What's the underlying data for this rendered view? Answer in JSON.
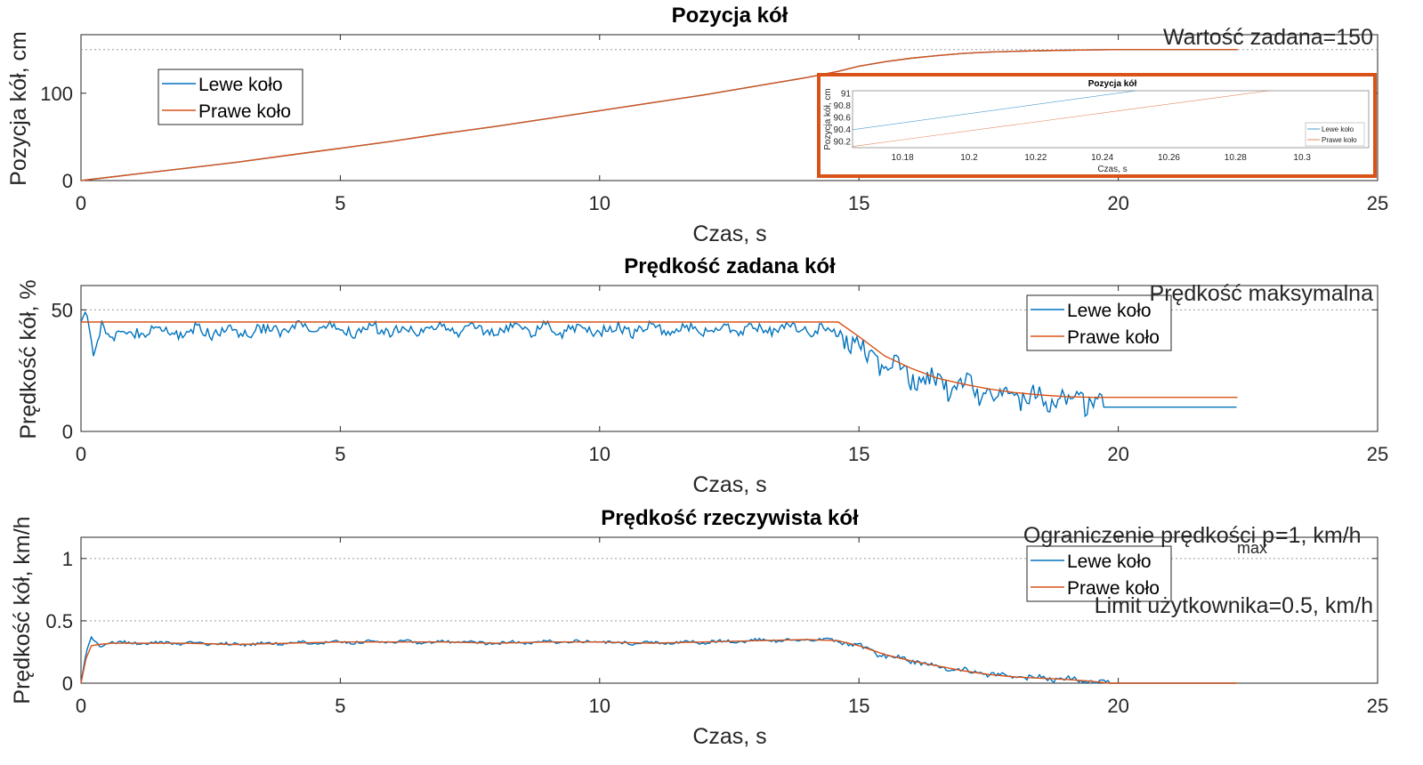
{
  "colors": {
    "left_wheel": "#0072BD",
    "right_wheel": "#D95319",
    "axes": "#262626",
    "reference_line": "#9a9a9a",
    "inset_frame": "#D95319"
  },
  "chart_data": [
    {
      "type": "line",
      "title": "Pozycja kół",
      "xlabel": "Czas, s",
      "ylabel": "Pozycja kół, cm",
      "xlim": [
        0,
        25
      ],
      "ylim": [
        0,
        167
      ],
      "xticks": [
        0,
        5,
        10,
        15,
        20,
        25
      ],
      "yticks": [
        0,
        100
      ],
      "grid": false,
      "legend": {
        "placement": "top-left",
        "entries": [
          "Lewe koło",
          "Prawe koło"
        ]
      },
      "annotations": [
        "Wartość zadana=150"
      ],
      "reference_lines": [
        {
          "y": 150,
          "style": "dotted"
        }
      ],
      "series": [
        {
          "name": "Lewe koło",
          "color": "#0072BD",
          "x": [
            0,
            1,
            2,
            3,
            4,
            5,
            6,
            7,
            8,
            9,
            10,
            11,
            12,
            13,
            14,
            14.6,
            15,
            15.5,
            16,
            16.5,
            17,
            17.5,
            18,
            18.5,
            19,
            19.5,
            20,
            22.3
          ],
          "y": [
            0,
            7,
            14,
            21,
            29,
            37,
            45,
            54,
            62,
            71,
            80,
            89,
            98,
            108,
            118,
            125,
            131,
            136,
            140,
            143,
            145.5,
            147,
            148,
            148.7,
            149.2,
            149.6,
            150,
            150
          ]
        },
        {
          "name": "Prawe koło",
          "color": "#D95319",
          "x": [
            0,
            1,
            2,
            3,
            4,
            5,
            6,
            7,
            8,
            9,
            10,
            11,
            12,
            13,
            14,
            14.6,
            15,
            15.5,
            16,
            16.5,
            17,
            17.5,
            18,
            18.5,
            19,
            19.5,
            20,
            22.3
          ],
          "y": [
            0,
            7,
            14,
            21,
            29,
            37,
            45,
            54,
            62,
            71,
            80,
            89,
            98,
            108,
            118,
            125,
            131,
            136,
            140,
            143,
            145.5,
            147,
            148,
            148.7,
            149.2,
            149.6,
            150,
            150
          ]
        }
      ],
      "inset": {
        "title": "Pozycja kół",
        "xlabel": "Czas, s",
        "ylabel": "Pozycja kół, cm",
        "xlim": [
          10.165,
          10.32
        ],
        "ylim": [
          90.1,
          91.05
        ],
        "xticks": [
          10.18,
          10.2,
          10.22,
          10.24,
          10.26,
          10.28,
          10.3
        ],
        "yticks": [
          90.2,
          90.4,
          90.6,
          90.8,
          91
        ],
        "legend": {
          "placement": "bottom-right",
          "entries": [
            "Lewe koło",
            "Prawe koło"
          ]
        },
        "series": [
          {
            "name": "Lewe koło",
            "x": [
              10.165,
              10.25
            ],
            "y": [
              90.4,
              91.05
            ]
          },
          {
            "name": "Prawe koło",
            "x": [
              10.165,
              10.29
            ],
            "y": [
              90.12,
              91.05
            ]
          }
        ]
      }
    },
    {
      "type": "line",
      "title": "Prędkość zadana kół",
      "xlabel": "Czas, s",
      "ylabel": "Prędkość kół, %",
      "xlim": [
        0,
        25
      ],
      "ylim": [
        0,
        60
      ],
      "xticks": [
        0,
        5,
        10,
        15,
        20,
        25
      ],
      "yticks": [
        0,
        50
      ],
      "grid": false,
      "legend": {
        "placement": "top-right",
        "entries": [
          "Lewe koło",
          "Prawe koło"
        ]
      },
      "annotations": [
        "Prędkość maksymalna"
      ],
      "reference_lines": [
        {
          "y": 50,
          "style": "dotted"
        }
      ],
      "series": [
        {
          "name": "Lewe koło",
          "color": "#0072BD",
          "noisy": true,
          "x": [
            0,
            0.1,
            0.25,
            0.4,
            0.6,
            1,
            2,
            3,
            4,
            5,
            6,
            7,
            8,
            9,
            10,
            11,
            12,
            13,
            14,
            14.6,
            15,
            15.5,
            16,
            16.5,
            17,
            17.5,
            18,
            18.5,
            19,
            19.5,
            19.7,
            22.3
          ],
          "y": [
            45,
            50,
            31,
            46,
            38,
            41,
            41,
            41,
            42,
            42,
            42,
            42,
            42,
            42,
            42,
            42,
            42,
            42,
            42,
            42,
            33,
            28,
            23,
            20,
            18,
            16,
            15,
            14,
            13,
            12.5,
            10,
            10
          ]
        },
        {
          "name": "Prawe koło",
          "color": "#D95319",
          "x": [
            0,
            14.6,
            15,
            15.5,
            16,
            16.5,
            17,
            17.5,
            18,
            18.5,
            19,
            19.5,
            20,
            22.3
          ],
          "y": [
            45,
            45,
            39,
            31,
            26,
            22,
            19.5,
            17.5,
            16,
            15,
            14.3,
            14,
            14,
            14
          ]
        }
      ]
    },
    {
      "type": "line",
      "title": "Prędkość rzeczywista kół",
      "xlabel": "Czas, s",
      "ylabel": "Prędkość kół, km/h",
      "xlim": [
        0,
        25
      ],
      "ylim": [
        0,
        1.17
      ],
      "xticks": [
        0,
        5,
        10,
        15,
        20,
        25
      ],
      "yticks": [
        0,
        0.5,
        1
      ],
      "grid": false,
      "legend": {
        "placement": "top-right",
        "entries": [
          "Lewe koło",
          "Prawe koło"
        ]
      },
      "annotations": [
        "Ograniczenie prędkości p",
        "max",
        "=1, km/h",
        "Limit użytkownika=0.5, km/h"
      ],
      "reference_lines": [
        {
          "y": 1,
          "style": "dotted"
        },
        {
          "y": 0.5,
          "style": "dotted"
        }
      ],
      "series": [
        {
          "name": "Lewe koło",
          "color": "#0072BD",
          "noisy": true,
          "x": [
            0,
            0.1,
            0.2,
            0.35,
            0.6,
            1,
            2,
            3,
            4,
            5,
            6,
            7,
            8,
            9,
            10,
            11,
            12,
            13,
            14,
            14.6,
            15,
            15.5,
            16,
            16.5,
            17,
            17.5,
            18,
            18.5,
            19,
            19.5,
            19.8,
            22.3
          ],
          "y": [
            0,
            0.25,
            0.37,
            0.3,
            0.33,
            0.32,
            0.32,
            0.31,
            0.32,
            0.33,
            0.33,
            0.33,
            0.32,
            0.33,
            0.33,
            0.32,
            0.33,
            0.34,
            0.35,
            0.34,
            0.3,
            0.22,
            0.18,
            0.14,
            0.1,
            0.07,
            0.05,
            0.04,
            0.03,
            0.015,
            0,
            0
          ]
        },
        {
          "name": "Prawe koło",
          "color": "#D95319",
          "x": [
            0,
            0.1,
            0.2,
            0.35,
            0.6,
            1,
            2,
            3,
            4,
            5,
            6,
            7,
            8,
            9,
            10,
            11,
            12,
            13,
            14,
            14.6,
            15,
            15.5,
            16,
            16.5,
            17,
            17.5,
            18,
            18.5,
            19,
            19.5,
            19.8,
            22.3
          ],
          "y": [
            0,
            0.2,
            0.3,
            0.31,
            0.32,
            0.32,
            0.32,
            0.31,
            0.32,
            0.33,
            0.33,
            0.33,
            0.32,
            0.33,
            0.33,
            0.32,
            0.33,
            0.34,
            0.35,
            0.34,
            0.3,
            0.23,
            0.18,
            0.14,
            0.1,
            0.07,
            0.05,
            0.04,
            0.03,
            0.015,
            0,
            0
          ]
        }
      ]
    }
  ]
}
